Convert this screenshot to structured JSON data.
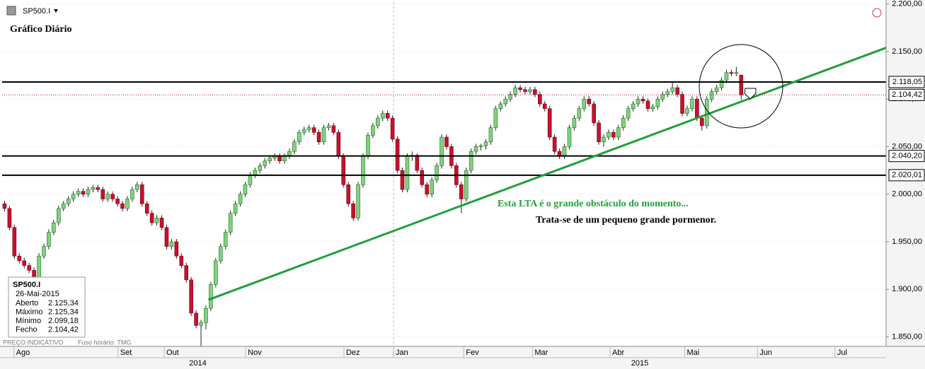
{
  "chart_data": {
    "type": "candlestick",
    "symbol": "SP500.I",
    "title": "Gráfico Diário",
    "xlim": [
      0,
      180
    ],
    "xticks": [
      {
        "value": 2.4,
        "label": "Ago"
      },
      {
        "value": 23.6,
        "label": "Set"
      },
      {
        "value": 33,
        "label": "Out"
      },
      {
        "value": 49.6,
        "label": "Nov"
      },
      {
        "value": 69.6,
        "label": "Dez"
      },
      {
        "value": 79.7,
        "label": "Jan"
      },
      {
        "value": 94,
        "label": "Fev"
      },
      {
        "value": 108,
        "label": "Mar"
      },
      {
        "value": 123.8,
        "label": "Abr"
      },
      {
        "value": 139,
        "label": "Mai"
      },
      {
        "value": 153.8,
        "label": "Jun"
      },
      {
        "value": 169.6,
        "label": "Jul"
      }
    ],
    "year_labels": [
      "2014",
      "2015"
    ],
    "ylim": [
      1840,
      2202
    ],
    "yticks": [
      {
        "value": 1850,
        "label": "1.850,00"
      },
      {
        "value": 1900,
        "label": "1.900,00"
      },
      {
        "value": 1950,
        "label": "1.950,00"
      },
      {
        "value": 2000,
        "label": "2.000,00"
      },
      {
        "value": 2050,
        "label": "2.050,00"
      },
      {
        "value": 2100,
        "label": "2.100,00"
      },
      {
        "value": 2150,
        "label": "2.150,00"
      },
      {
        "value": 2200,
        "label": "2.200,00"
      }
    ],
    "grid": true,
    "up_color": "#7ed37e",
    "down_color": "#c8102e",
    "candles": [
      [
        1990,
        1993,
        1982,
        1985
      ],
      [
        1985,
        1988,
        1962,
        1965
      ],
      [
        1965,
        1968,
        1932,
        1935
      ],
      [
        1935,
        1938,
        1927,
        1930
      ],
      [
        1930,
        1933,
        1922,
        1925
      ],
      [
        1925,
        1928,
        1917,
        1920
      ],
      [
        1920,
        1923,
        1905,
        1910
      ],
      [
        1910,
        1938,
        1907,
        1935
      ],
      [
        1935,
        1948,
        1932,
        1945
      ],
      [
        1945,
        1963,
        1942,
        1960
      ],
      [
        1960,
        1973,
        1957,
        1970
      ],
      [
        1970,
        1988,
        1967,
        1985
      ],
      [
        1985,
        1993,
        1982,
        1990
      ],
      [
        1990,
        1998,
        1987,
        1995
      ],
      [
        1995,
        2003,
        1992,
        2000
      ],
      [
        2000,
        2006,
        1997,
        2003
      ],
      [
        2003,
        2006,
        1997,
        2000
      ],
      [
        2000,
        2008,
        1997,
        2005
      ],
      [
        2005,
        2010,
        2002,
        2007
      ],
      [
        2007,
        2010,
        2002,
        2005
      ],
      [
        2005,
        2008,
        1992,
        1995
      ],
      [
        1995,
        2003,
        1992,
        2000
      ],
      [
        2000,
        2003,
        1992,
        1995
      ],
      [
        1995,
        1998,
        1987,
        1990
      ],
      [
        1990,
        1993,
        1982,
        1985
      ],
      [
        1985,
        1998,
        1982,
        1995
      ],
      [
        1995,
        2008,
        1992,
        2005
      ],
      [
        2005,
        2013,
        2002,
        2010
      ],
      [
        2010,
        2013,
        1987,
        1990
      ],
      [
        1990,
        1993,
        1977,
        1980
      ],
      [
        1980,
        1983,
        1967,
        1970
      ],
      [
        1970,
        1978,
        1967,
        1975
      ],
      [
        1975,
        1978,
        1962,
        1965
      ],
      [
        1965,
        1968,
        1942,
        1945
      ],
      [
        1945,
        1953,
        1942,
        1950
      ],
      [
        1950,
        1953,
        1932,
        1935
      ],
      [
        1935,
        1938,
        1922,
        1925
      ],
      [
        1925,
        1928,
        1907,
        1910
      ],
      [
        1910,
        1913,
        1872,
        1875
      ],
      [
        1875,
        1878,
        1859,
        1862
      ],
      [
        1862,
        1868,
        1835,
        1865
      ],
      [
        1865,
        1883,
        1858,
        1880
      ],
      [
        1880,
        1908,
        1877,
        1905
      ],
      [
        1905,
        1933,
        1902,
        1930
      ],
      [
        1930,
        1948,
        1927,
        1945
      ],
      [
        1945,
        1963,
        1942,
        1960
      ],
      [
        1960,
        1983,
        1957,
        1980
      ],
      [
        1980,
        1993,
        1977,
        1990
      ],
      [
        1990,
        2003,
        1987,
        2000
      ],
      [
        2000,
        2013,
        1997,
        2010
      ],
      [
        2010,
        2023,
        2007,
        2020
      ],
      [
        2020,
        2028,
        2017,
        2025
      ],
      [
        2025,
        2033,
        2022,
        2030
      ],
      [
        2030,
        2038,
        2027,
        2035
      ],
      [
        2035,
        2041,
        2032,
        2038
      ],
      [
        2038,
        2043,
        2035,
        2040
      ],
      [
        2040,
        2043,
        2032,
        2035
      ],
      [
        2035,
        2043,
        2032,
        2040
      ],
      [
        2040,
        2048,
        2037,
        2045
      ],
      [
        2045,
        2058,
        2042,
        2055
      ],
      [
        2055,
        2068,
        2052,
        2065
      ],
      [
        2065,
        2071,
        2062,
        2068
      ],
      [
        2068,
        2073,
        2065,
        2070
      ],
      [
        2070,
        2073,
        2062,
        2065
      ],
      [
        2065,
        2068,
        2052,
        2055
      ],
      [
        2055,
        2073,
        2052,
        2070
      ],
      [
        2070,
        2075,
        2067,
        2072
      ],
      [
        2072,
        2075,
        2062,
        2065
      ],
      [
        2065,
        2068,
        2037,
        2040
      ],
      [
        2040,
        2043,
        2007,
        2010
      ],
      [
        2010,
        2013,
        1987,
        1990
      ],
      [
        1990,
        1993,
        1972,
        1975
      ],
      [
        1975,
        2013,
        1972,
        2010
      ],
      [
        2010,
        2043,
        2007,
        2040
      ],
      [
        2040,
        2065,
        2037,
        2062
      ],
      [
        2062,
        2075,
        2059,
        2072
      ],
      [
        2072,
        2083,
        2069,
        2080
      ],
      [
        2080,
        2088,
        2077,
        2085
      ],
      [
        2085,
        2088,
        2077,
        2080
      ],
      [
        2080,
        2083,
        2055,
        2058
      ],
      [
        2058,
        2061,
        2022,
        2025
      ],
      [
        2025,
        2028,
        2002,
        2005
      ],
      [
        2005,
        2043,
        2002,
        2040
      ],
      [
        2040,
        2045,
        2035,
        2041
      ],
      [
        2041,
        2043,
        2022,
        2025
      ],
      [
        2025,
        2028,
        2007,
        2010
      ],
      [
        2010,
        2013,
        1997,
        2000
      ],
      [
        2000,
        2018,
        1997,
        2015
      ],
      [
        2015,
        2033,
        2012,
        2030
      ],
      [
        2030,
        2063,
        2027,
        2060
      ],
      [
        2060,
        2063,
        2047,
        2050
      ],
      [
        2050,
        2053,
        2027,
        2030
      ],
      [
        2030,
        2033,
        2007,
        2010
      ],
      [
        2010,
        2013,
        1980,
        1995
      ],
      [
        1995,
        2028,
        1992,
        2025
      ],
      [
        2025,
        2048,
        2022,
        2045
      ],
      [
        2045,
        2053,
        2042,
        2050
      ],
      [
        2050,
        2053,
        2046,
        2051
      ],
      [
        2051,
        2058,
        2047,
        2055
      ],
      [
        2055,
        2073,
        2052,
        2070
      ],
      [
        2070,
        2093,
        2067,
        2090
      ],
      [
        2090,
        2098,
        2087,
        2095
      ],
      [
        2095,
        2103,
        2092,
        2100
      ],
      [
        2100,
        2108,
        2097,
        2105
      ],
      [
        2105,
        2115,
        2102,
        2112
      ],
      [
        2112,
        2115,
        2107,
        2110
      ],
      [
        2110,
        2113,
        2105,
        2108
      ],
      [
        2108,
        2113,
        2105,
        2110
      ],
      [
        2110,
        2113,
        2102,
        2105
      ],
      [
        2105,
        2108,
        2092,
        2095
      ],
      [
        2095,
        2098,
        2087,
        2090
      ],
      [
        2090,
        2093,
        2057,
        2060
      ],
      [
        2060,
        2063,
        2042,
        2045
      ],
      [
        2045,
        2048,
        2037,
        2040
      ],
      [
        2040,
        2053,
        2037,
        2050
      ],
      [
        2050,
        2073,
        2047,
        2070
      ],
      [
        2070,
        2083,
        2067,
        2080
      ],
      [
        2080,
        2093,
        2077,
        2090
      ],
      [
        2090,
        2103,
        2087,
        2100
      ],
      [
        2100,
        2103,
        2092,
        2095
      ],
      [
        2095,
        2098,
        2072,
        2075
      ],
      [
        2075,
        2078,
        2052,
        2055
      ],
      [
        2055,
        2063,
        2050,
        2060
      ],
      [
        2060,
        2068,
        2057,
        2065
      ],
      [
        2065,
        2068,
        2057,
        2060
      ],
      [
        2060,
        2073,
        2057,
        2070
      ],
      [
        2070,
        2083,
        2067,
        2080
      ],
      [
        2080,
        2093,
        2077,
        2090
      ],
      [
        2090,
        2098,
        2087,
        2095
      ],
      [
        2095,
        2103,
        2092,
        2100
      ],
      [
        2100,
        2103,
        2095,
        2098
      ],
      [
        2098,
        2101,
        2087,
        2090
      ],
      [
        2090,
        2095,
        2087,
        2092
      ],
      [
        2092,
        2103,
        2089,
        2100
      ],
      [
        2100,
        2108,
        2097,
        2105
      ],
      [
        2105,
        2111,
        2102,
        2108
      ],
      [
        2108,
        2118,
        2105,
        2112
      ],
      [
        2112,
        2115,
        2102,
        2105
      ],
      [
        2105,
        2108,
        2082,
        2085
      ],
      [
        2085,
        2093,
        2082,
        2090
      ],
      [
        2090,
        2103,
        2087,
        2100
      ],
      [
        2100,
        2103,
        2077,
        2080
      ],
      [
        2080,
        2083,
        2067,
        2072
      ],
      [
        2072,
        2103,
        2069,
        2100
      ],
      [
        2100,
        2111,
        2097,
        2108
      ],
      [
        2108,
        2115,
        2105,
        2112
      ],
      [
        2112,
        2123,
        2109,
        2120
      ],
      [
        2120,
        2131,
        2117,
        2128
      ],
      [
        2128,
        2131,
        2124,
        2127
      ],
      [
        2127,
        2134,
        2124,
        2128
      ],
      [
        2125.34,
        2125.34,
        2099.18,
        2104.42
      ]
    ],
    "levels": [
      {
        "value": 2118.05,
        "label": "2.118,05",
        "color": "#000000",
        "line_style": "solid"
      },
      {
        "value": 2104.42,
        "label": "2.104,42",
        "color": "#c8102e",
        "line_style": "dotted"
      },
      {
        "value": 2040.2,
        "label": "2.040,20",
        "color": "#000000",
        "line_style": "solid"
      },
      {
        "value": 2020.01,
        "label": "2.020,01",
        "color": "#000000",
        "line_style": "solid"
      }
    ],
    "trendline": {
      "x": [
        42,
        180
      ],
      "y": [
        1889,
        2154
      ],
      "color": "#1fa03c"
    },
    "annotations": [
      {
        "text": "Esta LTA é o grande obstáculo do momento...",
        "color": "#1fa03c"
      },
      {
        "text": "Trata-se de um pequeno grande pormenor.",
        "color": "#000000"
      }
    ],
    "info_box": {
      "title": "SP500.I",
      "date": "26-Mai-2015",
      "rows": [
        [
          "Aberto",
          "2.125,34"
        ],
        [
          "Máximo",
          "2.125,34"
        ],
        [
          "Mínimo",
          "2.099,18"
        ],
        [
          "Fecho",
          "2.104,42"
        ]
      ]
    },
    "footer": {
      "note": "PREÇO INDICATIVO",
      "timezone": "Fuso horário: TMG"
    }
  }
}
